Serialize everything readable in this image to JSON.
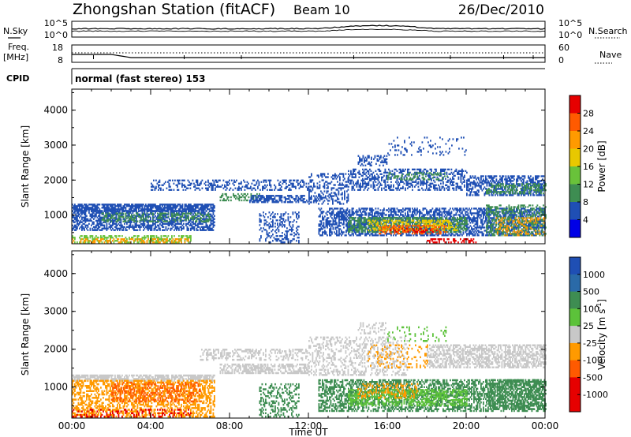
{
  "header": {
    "station": "Zhongshan Station (fitACF)",
    "beam": "Beam 10",
    "date": "26/Dec/2010"
  },
  "panels": {
    "nsky": {
      "left_label": "N.Sky",
      "right_label": "N.Search",
      "y_ticks_left": [
        "10^5",
        "10^0"
      ],
      "y_ticks_right": [
        "10^5",
        "10^0"
      ]
    },
    "freq": {
      "left_label_1": "Freq.",
      "left_label_2": "[MHz]",
      "y_ticks_left": [
        "18",
        "8"
      ],
      "y_ticks_right": [
        "60",
        "0"
      ],
      "right_label": "Nave"
    },
    "cpid": {
      "label": "CPID",
      "text": "normal (fast stereo) 153"
    }
  },
  "chart_data": [
    {
      "type": "heatmap",
      "name": "Power panel",
      "ylabel": "Slant Range [km]",
      "x_range_hours": [
        0,
        24
      ],
      "ylim": [
        180,
        4600
      ],
      "y_ticks": [
        1000,
        2000,
        3000,
        4000
      ],
      "colorbar": {
        "label": "Power [dB]",
        "ticks": [
          "28",
          "24",
          "20",
          "16",
          "12",
          "8",
          "4"
        ],
        "colors": [
          "#e60000",
          "#ff5a00",
          "#ff9a00",
          "#e8c800",
          "#69c23a",
          "#3e8d52",
          "#1f4fb4",
          "#0000e6"
        ]
      },
      "regions": [
        {
          "t0": 0.0,
          "t1": 7.2,
          "r0": 1100,
          "r1": 1300,
          "color": "#1f4fb4",
          "d": 0.8
        },
        {
          "t0": 0.0,
          "t1": 7.2,
          "r0": 550,
          "r1": 1100,
          "color": "#1f4fb4",
          "d": 0.55
        },
        {
          "t0": 1.5,
          "t1": 7.0,
          "r0": 800,
          "r1": 1050,
          "color": "#3e8d52",
          "d": 0.35
        },
        {
          "t0": 0.0,
          "t1": 6.0,
          "r0": 200,
          "r1": 400,
          "color": "#69c23a",
          "d": 0.5
        },
        {
          "t0": 0.0,
          "t1": 6.0,
          "r0": 200,
          "r1": 330,
          "color": "#ff9a00",
          "d": 0.35
        },
        {
          "t0": 4.0,
          "t1": 12.0,
          "r0": 1700,
          "r1": 2000,
          "color": "#1f4fb4",
          "d": 0.35
        },
        {
          "t0": 7.5,
          "t1": 9.5,
          "r0": 1400,
          "r1": 1600,
          "color": "#3e8d52",
          "d": 0.45
        },
        {
          "t0": 9.0,
          "t1": 12.0,
          "r0": 1350,
          "r1": 1550,
          "color": "#1f4fb4",
          "d": 0.6
        },
        {
          "t0": 9.5,
          "t1": 11.5,
          "r0": 200,
          "r1": 1100,
          "color": "#1f4fb4",
          "d": 0.3
        },
        {
          "t0": 12.0,
          "t1": 14.0,
          "r0": 1300,
          "r1": 2200,
          "color": "#1f4fb4",
          "d": 0.35
        },
        {
          "t0": 12.5,
          "t1": 24.0,
          "r0": 400,
          "r1": 1200,
          "color": "#1f4fb4",
          "d": 0.55
        },
        {
          "t0": 14.0,
          "t1": 20.0,
          "r0": 500,
          "r1": 950,
          "color": "#3e8d52",
          "d": 0.55
        },
        {
          "t0": 15.0,
          "t1": 19.5,
          "r0": 550,
          "r1": 850,
          "color": "#e8c800",
          "d": 0.4
        },
        {
          "t0": 15.5,
          "t1": 19.0,
          "r0": 450,
          "r1": 700,
          "color": "#ff5a00",
          "d": 0.35
        },
        {
          "t0": 16.0,
          "t1": 18.5,
          "r0": 500,
          "r1": 620,
          "color": "#e60000",
          "d": 0.25
        },
        {
          "t0": 14.0,
          "t1": 20.0,
          "r0": 1700,
          "r1": 2300,
          "color": "#1f4fb4",
          "d": 0.4
        },
        {
          "t0": 16.0,
          "t1": 19.0,
          "r0": 2000,
          "r1": 2200,
          "color": "#3e8d52",
          "d": 0.3
        },
        {
          "t0": 20.0,
          "t1": 24.0,
          "r0": 1550,
          "r1": 2100,
          "color": "#1f4fb4",
          "d": 0.55
        },
        {
          "t0": 21.0,
          "t1": 24.0,
          "r0": 1600,
          "r1": 1900,
          "color": "#3e8d52",
          "d": 0.4
        },
        {
          "t0": 21.0,
          "t1": 24.0,
          "r0": 400,
          "r1": 1300,
          "color": "#3e8d52",
          "d": 0.4
        },
        {
          "t0": 21.5,
          "t1": 24.0,
          "r0": 400,
          "r1": 900,
          "color": "#ff9a00",
          "d": 0.25
        },
        {
          "t0": 18.0,
          "t1": 20.5,
          "r0": 200,
          "r1": 330,
          "color": "#e60000",
          "d": 0.5
        },
        {
          "t0": 14.5,
          "t1": 16.0,
          "r0": 2400,
          "r1": 2700,
          "color": "#1f4fb4",
          "d": 0.35
        },
        {
          "t0": 16.0,
          "t1": 20.0,
          "r0": 2700,
          "r1": 3200,
          "color": "#1f4fb4",
          "d": 0.12
        }
      ]
    },
    {
      "type": "heatmap",
      "name": "Velocity panel",
      "ylabel": "Slant Range [km]",
      "xlabel": "Time UT",
      "x_ticks": [
        "00:00",
        "04:00",
        "08:00",
        "12:00",
        "16:00",
        "20:00",
        "00:00"
      ],
      "x_range_hours": [
        0,
        24
      ],
      "ylim": [
        180,
        4600
      ],
      "y_ticks": [
        1000,
        2000,
        3000,
        4000
      ],
      "colorbar": {
        "label": "Velocity [m s",
        "label_sup": "-1",
        "label_end": "]",
        "ticks": [
          "1000",
          "500",
          "100",
          "25",
          "-25",
          "-100",
          "-500",
          "-1000"
        ],
        "colors": [
          "#1f4fb4",
          "#2a6aa8",
          "#3e8d52",
          "#5cc23a",
          "#c8c8c8",
          "#ff9a00",
          "#ff5a00",
          "#e60000",
          "#e60000"
        ]
      },
      "regions": [
        {
          "t0": 0.0,
          "t1": 7.2,
          "r0": 1150,
          "r1": 1300,
          "color": "#c8c8c8",
          "d": 0.7
        },
        {
          "t0": 0.0,
          "t1": 7.2,
          "r0": 200,
          "r1": 1150,
          "color": "#ff9a00",
          "d": 0.5
        },
        {
          "t0": 2.0,
          "t1": 6.5,
          "r0": 600,
          "r1": 1100,
          "color": "#ff5a00",
          "d": 0.3
        },
        {
          "t0": 0.0,
          "t1": 6.0,
          "r0": 200,
          "r1": 400,
          "color": "#e60000",
          "d": 0.2
        },
        {
          "t0": 7.5,
          "t1": 12.0,
          "r0": 1350,
          "r1": 1600,
          "color": "#c8c8c8",
          "d": 0.55
        },
        {
          "t0": 6.5,
          "t1": 12.0,
          "r0": 1700,
          "r1": 2000,
          "color": "#c8c8c8",
          "d": 0.35
        },
        {
          "t0": 9.5,
          "t1": 11.5,
          "r0": 200,
          "r1": 1100,
          "color": "#3e8d52",
          "d": 0.3
        },
        {
          "t0": 12.5,
          "t1": 24.0,
          "r0": 350,
          "r1": 1200,
          "color": "#3e8d52",
          "d": 0.5
        },
        {
          "t0": 14.0,
          "t1": 20.0,
          "r0": 500,
          "r1": 950,
          "color": "#5cc23a",
          "d": 0.45
        },
        {
          "t0": 14.5,
          "t1": 17.5,
          "r0": 700,
          "r1": 1100,
          "color": "#ff9a00",
          "d": 0.3
        },
        {
          "t0": 12.0,
          "t1": 17.0,
          "r0": 1300,
          "r1": 2300,
          "color": "#c8c8c8",
          "d": 0.3
        },
        {
          "t0": 15.0,
          "t1": 18.0,
          "r0": 1500,
          "r1": 2100,
          "color": "#ff9a00",
          "d": 0.15
        },
        {
          "t0": 18.0,
          "t1": 24.0,
          "r0": 1500,
          "r1": 2100,
          "color": "#c8c8c8",
          "d": 0.55
        },
        {
          "t0": 21.0,
          "t1": 24.0,
          "r0": 400,
          "r1": 1200,
          "color": "#3e8d52",
          "d": 0.45
        },
        {
          "t0": 16.0,
          "t1": 19.0,
          "r0": 2200,
          "r1": 2600,
          "color": "#5cc23a",
          "d": 0.12
        },
        {
          "t0": 14.5,
          "t1": 16.0,
          "r0": 2400,
          "r1": 2700,
          "color": "#c8c8c8",
          "d": 0.3
        }
      ]
    }
  ]
}
